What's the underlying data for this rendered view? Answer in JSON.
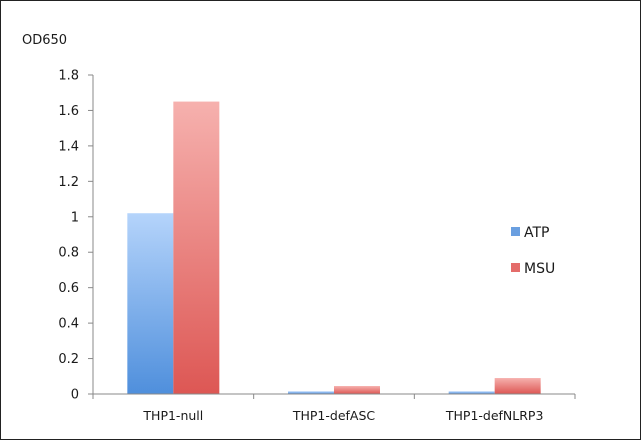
{
  "chart_data": {
    "type": "bar",
    "title": "",
    "xlabel": "",
    "ylabel": "OD650",
    "ylim": [
      0,
      1.8
    ],
    "yticks": [
      "0",
      "0.2",
      "0.4",
      "0.6",
      "0.8",
      "1",
      "1.2",
      "1.4",
      "1.6",
      "1.8"
    ],
    "categories": [
      "THP1-null",
      "THP1-defASC",
      "THP1-defNLRP3"
    ],
    "series": [
      {
        "name": "ATP",
        "values": [
          1.02,
          0.015,
          0.015
        ],
        "color": "#6a9fe0"
      },
      {
        "name": "MSU",
        "values": [
          1.65,
          0.045,
          0.09
        ],
        "color": "#e46c6a"
      }
    ],
    "grid": false,
    "legend": "right"
  }
}
